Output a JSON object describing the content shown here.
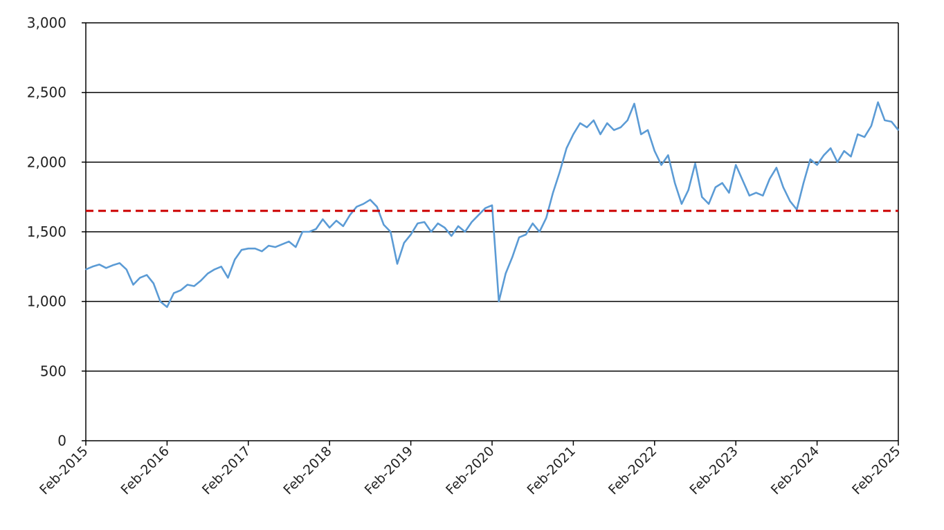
{
  "chart_data": {
    "type": "line",
    "title": "",
    "xlabel": "",
    "ylabel": "",
    "x_range": [
      "2015-02",
      "2025-02"
    ],
    "ylim": [
      0,
      3000
    ],
    "y_ticks": [
      0,
      500,
      1000,
      1500,
      2000,
      2500,
      3000
    ],
    "y_tick_labels": [
      "0",
      "500",
      "1,000",
      "1,500",
      "2,000",
      "2,500",
      "3,000"
    ],
    "x_ticks": [
      "2015-02",
      "2016-02",
      "2017-02",
      "2018-02",
      "2019-02",
      "2020-02",
      "2021-02",
      "2022-02",
      "2023-02",
      "2024-02",
      "2025-02"
    ],
    "x_tick_labels": [
      "Feb-2015",
      "Feb-2016",
      "Feb-2017",
      "Feb-2018",
      "Feb-2019",
      "Feb-2020",
      "Feb-2021",
      "Feb-2022",
      "Feb-2023",
      "Feb-2024",
      "Feb-2025"
    ],
    "grid": "horizontal",
    "series": [
      {
        "color": "#5b9bd5",
        "points": [
          [
            "2015-02",
            1230
          ],
          [
            "2015-03",
            1250
          ],
          [
            "2015-04",
            1265
          ],
          [
            "2015-05",
            1240
          ],
          [
            "2015-06",
            1260
          ],
          [
            "2015-07",
            1275
          ],
          [
            "2015-08",
            1230
          ],
          [
            "2015-09",
            1120
          ],
          [
            "2015-10",
            1170
          ],
          [
            "2015-11",
            1190
          ],
          [
            "2015-12",
            1130
          ],
          [
            "2016-01",
            1000
          ],
          [
            "2016-02",
            960
          ],
          [
            "2016-03",
            1060
          ],
          [
            "2016-04",
            1080
          ],
          [
            "2016-05",
            1120
          ],
          [
            "2016-06",
            1110
          ],
          [
            "2016-07",
            1150
          ],
          [
            "2016-08",
            1200
          ],
          [
            "2016-09",
            1230
          ],
          [
            "2016-10",
            1250
          ],
          [
            "2016-11",
            1170
          ],
          [
            "2016-12",
            1300
          ],
          [
            "2017-01",
            1370
          ],
          [
            "2017-02",
            1380
          ],
          [
            "2017-03",
            1380
          ],
          [
            "2017-04",
            1360
          ],
          [
            "2017-05",
            1400
          ],
          [
            "2017-06",
            1390
          ],
          [
            "2017-07",
            1410
          ],
          [
            "2017-08",
            1430
          ],
          [
            "2017-09",
            1390
          ],
          [
            "2017-10",
            1500
          ],
          [
            "2017-11",
            1500
          ],
          [
            "2017-12",
            1520
          ],
          [
            "2018-01",
            1590
          ],
          [
            "2018-02",
            1530
          ],
          [
            "2018-03",
            1580
          ],
          [
            "2018-04",
            1540
          ],
          [
            "2018-05",
            1620
          ],
          [
            "2018-06",
            1680
          ],
          [
            "2018-07",
            1700
          ],
          [
            "2018-08",
            1730
          ],
          [
            "2018-09",
            1680
          ],
          [
            "2018-10",
            1550
          ],
          [
            "2018-11",
            1500
          ],
          [
            "2018-12",
            1270
          ],
          [
            "2019-01",
            1420
          ],
          [
            "2019-02",
            1480
          ],
          [
            "2019-03",
            1560
          ],
          [
            "2019-04",
            1570
          ],
          [
            "2019-05",
            1500
          ],
          [
            "2019-06",
            1560
          ],
          [
            "2019-07",
            1530
          ],
          [
            "2019-08",
            1470
          ],
          [
            "2019-09",
            1540
          ],
          [
            "2019-10",
            1500
          ],
          [
            "2019-11",
            1570
          ],
          [
            "2019-12",
            1620
          ],
          [
            "2020-01",
            1670
          ],
          [
            "2020-02",
            1690
          ],
          [
            "2020-03",
            1000
          ],
          [
            "2020-04",
            1200
          ],
          [
            "2020-05",
            1320
          ],
          [
            "2020-06",
            1460
          ],
          [
            "2020-07",
            1480
          ],
          [
            "2020-08",
            1560
          ],
          [
            "2020-09",
            1500
          ],
          [
            "2020-10",
            1600
          ],
          [
            "2020-11",
            1780
          ],
          [
            "2020-12",
            1930
          ],
          [
            "2021-01",
            2100
          ],
          [
            "2021-02",
            2200
          ],
          [
            "2021-03",
            2280
          ],
          [
            "2021-04",
            2250
          ],
          [
            "2021-05",
            2300
          ],
          [
            "2021-06",
            2200
          ],
          [
            "2021-07",
            2280
          ],
          [
            "2021-08",
            2230
          ],
          [
            "2021-09",
            2250
          ],
          [
            "2021-10",
            2300
          ],
          [
            "2021-11",
            2420
          ],
          [
            "2021-12",
            2200
          ],
          [
            "2022-01",
            2230
          ],
          [
            "2022-02",
            2080
          ],
          [
            "2022-03",
            1980
          ],
          [
            "2022-04",
            2050
          ],
          [
            "2022-05",
            1850
          ],
          [
            "2022-06",
            1700
          ],
          [
            "2022-07",
            1800
          ],
          [
            "2022-08",
            1990
          ],
          [
            "2022-09",
            1750
          ],
          [
            "2022-10",
            1700
          ],
          [
            "2022-11",
            1820
          ],
          [
            "2022-12",
            1850
          ],
          [
            "2023-01",
            1780
          ],
          [
            "2023-02",
            1980
          ],
          [
            "2023-03",
            1870
          ],
          [
            "2023-04",
            1760
          ],
          [
            "2023-05",
            1780
          ],
          [
            "2023-06",
            1760
          ],
          [
            "2023-07",
            1880
          ],
          [
            "2023-08",
            1960
          ],
          [
            "2023-09",
            1820
          ],
          [
            "2023-10",
            1720
          ],
          [
            "2023-11",
            1660
          ],
          [
            "2023-12",
            1850
          ],
          [
            "2024-01",
            2020
          ],
          [
            "2024-02",
            1980
          ],
          [
            "2024-03",
            2050
          ],
          [
            "2024-04",
            2100
          ],
          [
            "2024-05",
            2000
          ],
          [
            "2024-06",
            2080
          ],
          [
            "2024-07",
            2040
          ],
          [
            "2024-08",
            2200
          ],
          [
            "2024-09",
            2180
          ],
          [
            "2024-10",
            2260
          ],
          [
            "2024-11",
            2430
          ],
          [
            "2024-12",
            2300
          ],
          [
            "2025-01",
            2290
          ],
          [
            "2025-02",
            2230
          ]
        ]
      }
    ],
    "reference_line": {
      "y": 1650,
      "color": "#cc0000",
      "style": "dashed"
    }
  }
}
